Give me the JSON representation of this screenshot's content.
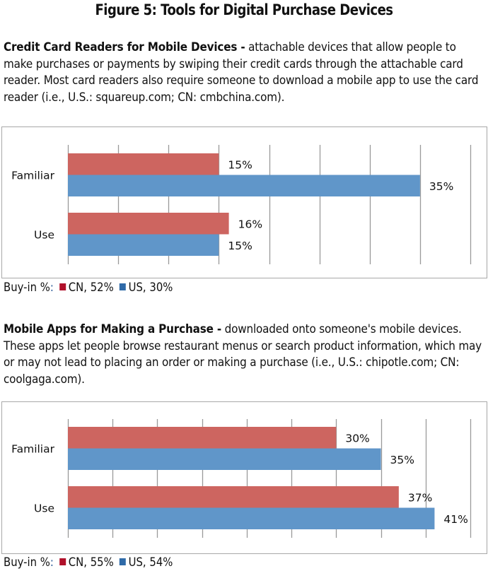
{
  "figure_title": "Figure 5: Tools for Digital Purchase Devices",
  "colors": {
    "cn_bar": "#cd6560",
    "us_bar": "#6096c9",
    "cn_legend": "#b0102a",
    "us_legend": "#2f6aa8",
    "grid": "#9a9a9a"
  },
  "sections": [
    {
      "heading": "Credit Card Readers for Mobile Devices -",
      "description": " attachable devices that allow people to make purchases or payments by swiping their credit cards through the attachable card reader. Most card readers also require someone to download a mobile app to use the card reader (i.e., U.S.: squareup.com; CN: cmbchina.com).",
      "legend": {
        "prefix": "Buy-in %",
        "colon": ":",
        "cn_label": "CN, 52%",
        "us_label": "US, 30%"
      }
    },
    {
      "heading": "Mobile Apps for Making a Purchase -",
      "description": " downloaded onto someone's mobile devices. These apps let people browse restaurant menus or search product information, which may or may not lead to placing an order or making a purchase (i.e., U.S.: chipotle.com; CN: coolgaga.com).",
      "legend": {
        "prefix": "Buy-in %",
        "colon": ":",
        "cn_label": "CN, 55%",
        "us_label": "US, 54%"
      }
    }
  ],
  "chart_data": [
    {
      "type": "bar",
      "orientation": "horizontal",
      "title": "Credit Card Readers for Mobile Devices",
      "categories": [
        "Familiar",
        "Use"
      ],
      "series": [
        {
          "name": "CN",
          "values": [
            15,
            16
          ],
          "labels": [
            "15%",
            "16%"
          ]
        },
        {
          "name": "US",
          "values": [
            35,
            15
          ],
          "labels": [
            "35%",
            "15%"
          ]
        }
      ],
      "xlim": [
        0,
        40
      ],
      "grid_step": 5,
      "grid": true,
      "legend": "bottom-left"
    },
    {
      "type": "bar",
      "orientation": "horizontal",
      "title": "Mobile Apps for Making a Purchase",
      "categories": [
        "Familiar",
        "Use"
      ],
      "series": [
        {
          "name": "CN",
          "values": [
            30,
            37
          ],
          "labels": [
            "30%",
            "37%"
          ]
        },
        {
          "name": "US",
          "values": [
            35,
            41
          ],
          "labels": [
            "35%",
            "41%"
          ]
        }
      ],
      "xlim": [
        0,
        45
      ],
      "grid_step": 5,
      "grid": true,
      "legend": "bottom-left"
    }
  ]
}
